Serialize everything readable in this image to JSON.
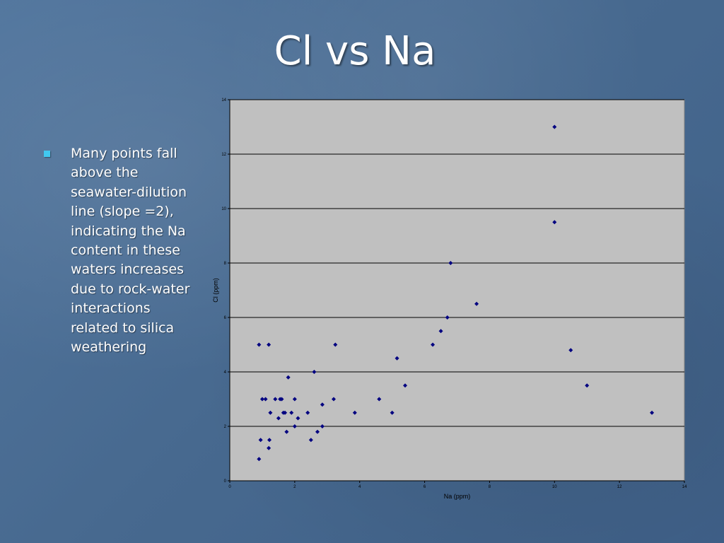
{
  "slide": {
    "title": "Cl vs Na",
    "bullet": "Many points fall above the seawater-dilution line (slope =2), indicating the Na content in these waters increases due to rock-water interactions related to silica weathering"
  },
  "colors": {
    "background": "#4a6d94",
    "plot_area": "#c0c0c0",
    "gridline": "#000000",
    "marker": "#000080",
    "bullet": "#41c8f0"
  },
  "chart_data": {
    "type": "scatter",
    "xlabel": "Na (ppm)",
    "ylabel": "Cl (ppm)",
    "xlim": [
      0,
      14
    ],
    "ylim": [
      0,
      14
    ],
    "xticks": [
      0,
      2,
      4,
      6,
      8,
      10,
      12,
      14
    ],
    "yticks": [
      0,
      2,
      4,
      6,
      8,
      10,
      12,
      14
    ],
    "grid": "horizontal major gridlines",
    "marker": "diamond",
    "series": [
      {
        "points": [
          [
            0.9,
            5.0
          ],
          [
            0.9,
            0.8
          ],
          [
            0.95,
            1.5
          ],
          [
            1.0,
            3.0
          ],
          [
            1.1,
            3.0
          ],
          [
            1.2,
            5.0
          ],
          [
            1.2,
            1.2
          ],
          [
            1.22,
            1.5
          ],
          [
            1.25,
            2.5
          ],
          [
            1.4,
            3.0
          ],
          [
            1.5,
            2.3
          ],
          [
            1.55,
            3.0
          ],
          [
            1.6,
            3.0
          ],
          [
            1.65,
            2.5
          ],
          [
            1.7,
            2.5
          ],
          [
            1.75,
            1.8
          ],
          [
            1.8,
            3.8
          ],
          [
            1.9,
            2.5
          ],
          [
            2.0,
            3.0
          ],
          [
            2.0,
            2.0
          ],
          [
            2.1,
            2.3
          ],
          [
            2.4,
            2.5
          ],
          [
            2.5,
            1.5
          ],
          [
            2.6,
            4.0
          ],
          [
            2.7,
            1.8
          ],
          [
            2.85,
            2.8
          ],
          [
            2.85,
            2.0
          ],
          [
            3.2,
            3.0
          ],
          [
            3.25,
            5.0
          ],
          [
            3.85,
            2.5
          ],
          [
            4.6,
            3.0
          ],
          [
            5.0,
            2.5
          ],
          [
            5.15,
            4.5
          ],
          [
            5.4,
            3.5
          ],
          [
            6.25,
            5.0
          ],
          [
            6.5,
            5.5
          ],
          [
            6.7,
            6.0
          ],
          [
            6.8,
            8.0
          ],
          [
            7.6,
            6.5
          ],
          [
            10.0,
            13.0
          ],
          [
            10.0,
            9.5
          ],
          [
            10.5,
            4.8
          ],
          [
            11.0,
            3.5
          ],
          [
            13.0,
            2.5
          ]
        ]
      }
    ]
  }
}
